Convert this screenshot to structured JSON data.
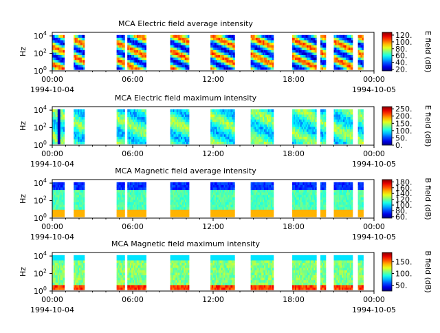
{
  "xticks": [
    "00:00",
    "06:00",
    "12:00",
    "18:00",
    "00:00"
  ],
  "date_start": "1994-10-04",
  "date_end": "1994-10-05",
  "chart_data": [
    {
      "type": "heatmap",
      "title": "MCA  Electric field average intensity",
      "ylabel": "Hz",
      "yticks": [
        "10^0",
        "10^2",
        "10^4"
      ],
      "cbar_label": "E field (dB)",
      "cbar_ticks": [
        "20.",
        "40.",
        "60.",
        "80.",
        "100.",
        "120."
      ],
      "cbar_range": [
        15,
        128
      ],
      "xlim_hours": [
        0,
        24
      ],
      "ylim_log10_hz": [
        0,
        4.4
      ],
      "data_intervals_hours": [
        [
          0.0,
          0.9
        ],
        [
          1.6,
          2.4
        ],
        [
          4.8,
          5.4
        ],
        [
          5.6,
          7.0
        ],
        [
          8.8,
          10.2
        ],
        [
          11.8,
          13.6
        ],
        [
          14.8,
          16.5
        ],
        [
          17.9,
          19.7
        ],
        [
          20.0,
          20.4
        ],
        [
          21.0,
          22.4
        ],
        [
          22.8,
          23.2
        ]
      ],
      "colormap": "jet"
    },
    {
      "type": "heatmap",
      "title": "MCA  Electric field maximum intensity",
      "ylabel": "Hz",
      "yticks": [
        "10^0",
        "10^2",
        "10^4"
      ],
      "cbar_label": "E field (dB)",
      "cbar_ticks": [
        "0.",
        "50.",
        "100.",
        "150.",
        "200.",
        "250."
      ],
      "cbar_range": [
        0,
        265
      ],
      "xlim_hours": [
        0,
        24
      ],
      "ylim_log10_hz": [
        0,
        4.4
      ],
      "data_intervals_hours": [
        [
          0.0,
          0.9
        ],
        [
          1.6,
          2.4
        ],
        [
          4.8,
          5.4
        ],
        [
          5.6,
          7.0
        ],
        [
          8.8,
          10.2
        ],
        [
          11.8,
          13.6
        ],
        [
          14.8,
          16.5
        ],
        [
          17.9,
          19.7
        ],
        [
          20.0,
          20.4
        ],
        [
          21.0,
          22.4
        ],
        [
          22.8,
          23.2
        ]
      ],
      "colormap": "jet"
    },
    {
      "type": "heatmap",
      "title": "MCA  Magnetic field average intensity",
      "ylabel": "Hz",
      "yticks": [
        "10^0",
        "10^2",
        "10^4"
      ],
      "cbar_label": "B field (dB)",
      "cbar_ticks": [
        "60.",
        "80.",
        "100.",
        "120.",
        "140.",
        "160.",
        "180."
      ],
      "cbar_range": [
        55,
        188
      ],
      "xlim_hours": [
        0,
        24
      ],
      "ylim_log10_hz": [
        0,
        4.4
      ],
      "data_intervals_hours": [
        [
          0.0,
          0.9
        ],
        [
          1.6,
          2.4
        ],
        [
          4.8,
          5.4
        ],
        [
          5.6,
          7.0
        ],
        [
          8.8,
          10.2
        ],
        [
          11.8,
          13.6
        ],
        [
          14.8,
          16.5
        ],
        [
          17.9,
          19.7
        ],
        [
          20.0,
          20.4
        ],
        [
          21.0,
          22.4
        ],
        [
          22.8,
          23.2
        ]
      ],
      "colormap": "jet"
    },
    {
      "type": "heatmap",
      "title": "MCA  Magnetic field maximum intensity",
      "ylabel": "Hz",
      "yticks": [
        "10^0",
        "10^2",
        "10^4"
      ],
      "cbar_label": "B field (dB)",
      "cbar_ticks": [
        "50.",
        "100.",
        "150."
      ],
      "cbar_range": [
        25,
        190
      ],
      "xlim_hours": [
        0,
        24
      ],
      "ylim_log10_hz": [
        0,
        4.4
      ],
      "data_intervals_hours": [
        [
          0.0,
          0.9
        ],
        [
          1.6,
          2.4
        ],
        [
          4.8,
          5.4
        ],
        [
          5.6,
          7.0
        ],
        [
          8.8,
          10.2
        ],
        [
          11.8,
          13.6
        ],
        [
          14.8,
          16.5
        ],
        [
          17.9,
          19.7
        ],
        [
          20.0,
          20.4
        ],
        [
          21.0,
          22.4
        ],
        [
          22.8,
          23.2
        ]
      ],
      "colormap": "jet"
    }
  ]
}
